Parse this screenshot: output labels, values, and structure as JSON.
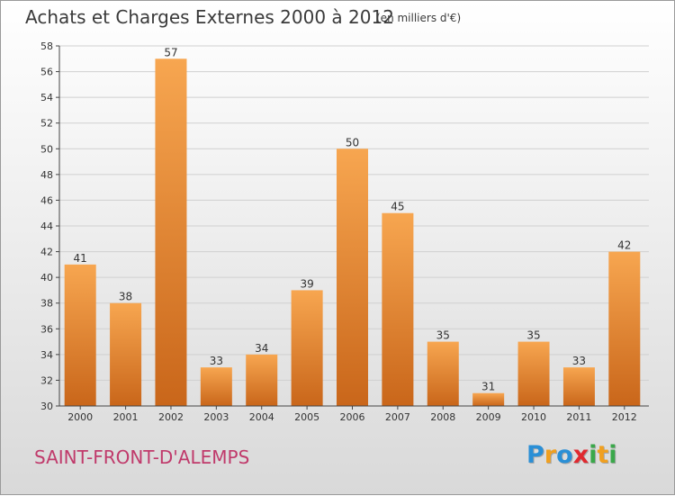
{
  "title": "Achats et Charges Externes 2000 à 2012",
  "subtitle": "(en milliers d'€)",
  "commune": "SAINT-FRONT-D'ALEMPS",
  "logo": {
    "text": "Proxiti",
    "letters": [
      {
        "ch": "P",
        "color": "#2a8fd6"
      },
      {
        "ch": "r",
        "color": "#f0a020"
      },
      {
        "ch": "o",
        "color": "#2a8fd6"
      },
      {
        "ch": "x",
        "color": "#e0292f"
      },
      {
        "ch": "i",
        "color": "#3aa84a"
      },
      {
        "ch": "t",
        "color": "#f0a020"
      },
      {
        "ch": "i",
        "color": "#3aa84a"
      }
    ]
  },
  "colors": {
    "bar_light": "#f7a650",
    "bar_dark": "#c9661a",
    "grid": "#d0d0d0",
    "axis": "#444444"
  },
  "chart_data": {
    "type": "bar",
    "categories": [
      "2000",
      "2001",
      "2002",
      "2003",
      "2004",
      "2005",
      "2006",
      "2007",
      "2008",
      "2009",
      "2010",
      "2011",
      "2012"
    ],
    "values": [
      41,
      38,
      57,
      33,
      34,
      39,
      50,
      45,
      35,
      31,
      35,
      33,
      42
    ],
    "ylim": [
      30,
      58
    ],
    "yticks": [
      30,
      32,
      34,
      36,
      38,
      40,
      42,
      44,
      46,
      48,
      50,
      52,
      54,
      56,
      58
    ],
    "grid": true,
    "data_labels": true
  }
}
